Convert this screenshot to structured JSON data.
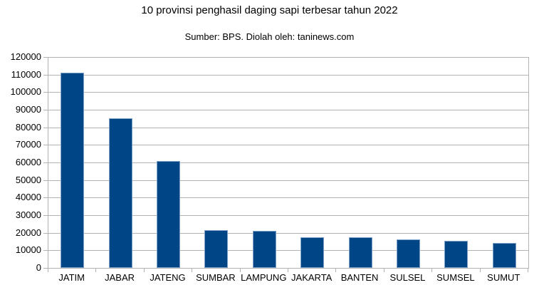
{
  "header": {
    "title": "10 provinsi penghasil daging sapi terbesar tahun 2022",
    "subtitle": "Sumber: BPS. Diolah oleh: taninews.com"
  },
  "chart_data": {
    "type": "bar",
    "title": "10 provinsi penghasil daging sapi terbesar tahun 2022",
    "subtitle": "Sumber: BPS. Diolah oleh: taninews.com",
    "categories": [
      "JATIM",
      "JABAR",
      "JATENG",
      "SUMBAR",
      "LAMPUNG",
      "JAKARTA",
      "BANTEN",
      "SULSEL",
      "SUMSEL",
      "SUMUT"
    ],
    "values": [
      111000,
      85000,
      61000,
      21500,
      21000,
      17600,
      17300,
      16400,
      15600,
      14000
    ],
    "xlabel": "",
    "ylabel": "",
    "ylim": [
      0,
      120000
    ],
    "yticks": [
      0,
      10000,
      20000,
      30000,
      40000,
      50000,
      60000,
      70000,
      80000,
      90000,
      100000,
      110000,
      120000
    ],
    "grid": true,
    "legend": "none",
    "bar_color": "#004586",
    "bar_border_color": "#7fa1c6",
    "grid_color": "#b2b2b2",
    "axis_color": "#b2b2b2",
    "text_color": "#000000",
    "background_color": "#ffffff"
  }
}
